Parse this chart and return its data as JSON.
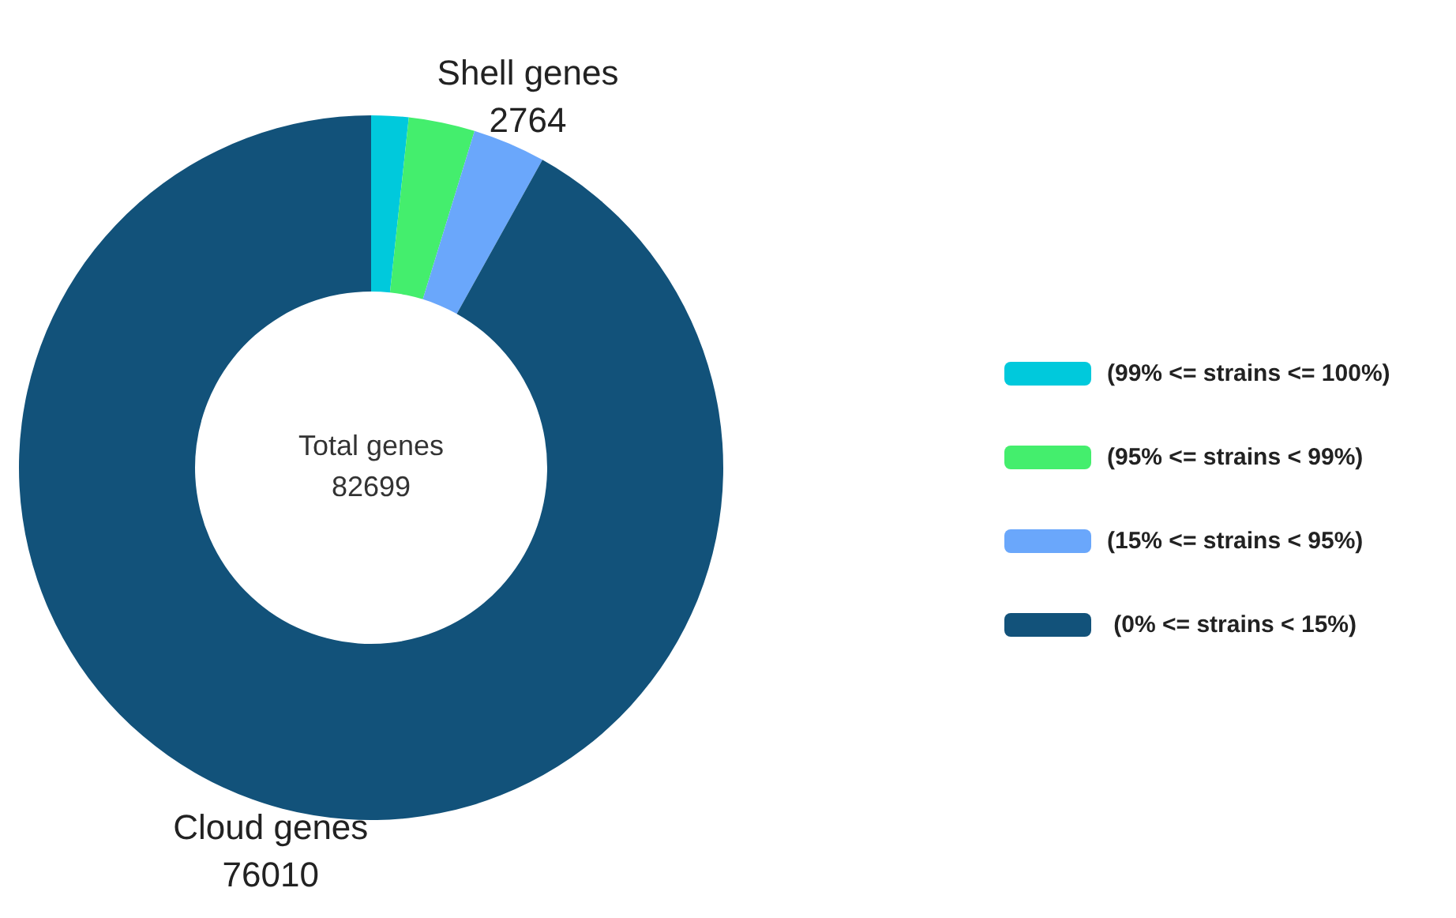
{
  "chart_data": {
    "type": "donut",
    "categories": [
      "(99% <= strains <= 100%)",
      "(95% <= strains < 99%)",
      "(15% <= strains < 95%)",
      " (0% <= strains < 15%)"
    ],
    "values": [
      1413,
      2512,
      2764,
      76010
    ],
    "colors": [
      "#00c9dc",
      "#44ee6d",
      "#6aa7fb",
      "#12527a"
    ],
    "value_labels": [
      null,
      null,
      "2764",
      "76010"
    ],
    "annotations": [
      {
        "text": "Shell genes",
        "x": "(15% <= strains < 95%)"
      },
      {
        "text": "Cloud genes",
        "x": " (0% <= strains < 15%)"
      },
      "Total genes\n82699"
    ],
    "legend": "right"
  }
}
